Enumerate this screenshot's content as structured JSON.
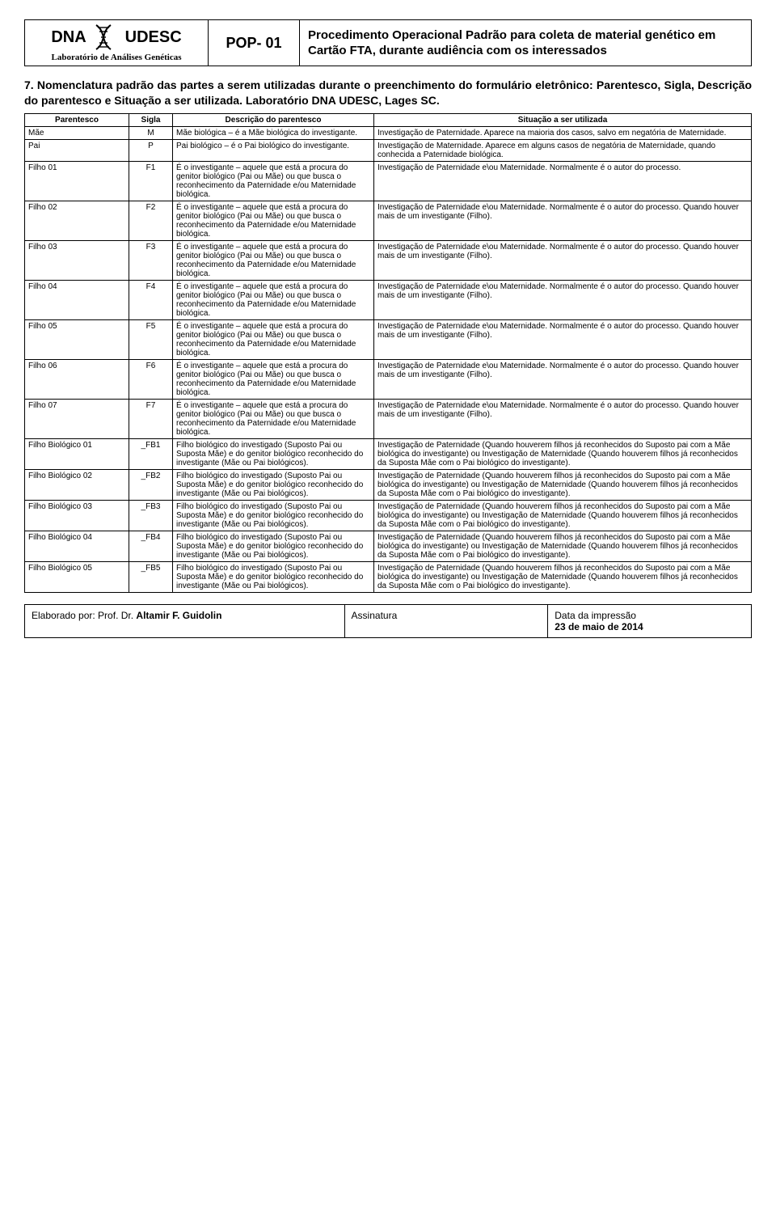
{
  "header": {
    "dna": "DNA",
    "udesc": "UDESC",
    "labSub": "Laboratório de Análises Genéticas",
    "pop": "POP- 01",
    "title": "Procedimento Operacional Padrão para coleta de material genético em Cartão FTA, durante audiência com os interessados"
  },
  "section": {
    "text": "7. Nomenclatura padrão das partes a serem utilizadas durante o preenchimento do formulário eletrônico: Parentesco, Sigla, Descrição do parentesco e Situação a ser utilizada. Laboratório DNA UDESC, Lages SC."
  },
  "tableHeader": {
    "parentesco": "Parentesco",
    "sigla": "Sigla",
    "desc": "Descrição do parentesco",
    "sit": "Situação a ser utilizada"
  },
  "rows": [
    {
      "p": "Mãe",
      "s": "M",
      "d": "Mãe biológica – é a Mãe biológica do investigante.",
      "sit": "Investigação de Paternidade. Aparece na maioria dos casos, salvo em negatória de Maternidade."
    },
    {
      "p": "Pai",
      "s": "P",
      "d": "Pai biológico – é o Pai biológico do investigante.",
      "sit": "Investigação de Maternidade. Aparece em alguns casos de negatória de Maternidade, quando conhecida a Paternidade biológica."
    },
    {
      "p": "Filho 01",
      "s": "F1",
      "d": "É o investigante – aquele que está a procura do genitor biológico (Pai ou Mãe) ou que busca o reconhecimento da Paternidade e/ou Maternidade biológica.",
      "sit": "Investigação de Paternidade e\\ou Maternidade. Normalmente é o autor do processo."
    },
    {
      "p": "Filho 02",
      "s": "F2",
      "d": "É o investigante – aquele que está a procura do genitor biológico (Pai ou Mãe) ou que busca o reconhecimento da Paternidade e/ou Maternidade biológica.",
      "sit": "Investigação de Paternidade e\\ou Maternidade. Normalmente é o autor do processo. Quando houver mais de um investigante (Filho)."
    },
    {
      "p": "Filho 03",
      "s": "F3",
      "d": "É o investigante – aquele que está a procura do genitor biológico (Pai ou Mãe) ou que busca o reconhecimento da Paternidade e/ou Maternidade biológica.",
      "sit": "Investigação de Paternidade e\\ou Maternidade. Normalmente é o autor do processo. Quando houver mais de um investigante (Filho)."
    },
    {
      "p": "Filho 04",
      "s": "F4",
      "d": "É o investigante – aquele que está a procura do genitor biológico (Pai ou Mãe) ou que busca o reconhecimento da Paternidade e/ou Maternidade biológica.",
      "sit": "Investigação de Paternidade e\\ou Maternidade. Normalmente é o autor do processo. Quando houver mais de um investigante (Filho)."
    },
    {
      "p": "Filho 05",
      "s": "F5",
      "d": "É o investigante – aquele que está a procura do genitor biológico (Pai ou Mãe) ou que busca o reconhecimento da Paternidade e/ou Maternidade biológica.",
      "sit": "Investigação de Paternidade e\\ou Maternidade. Normalmente é o autor do processo. Quando houver mais de um investigante (Filho)."
    },
    {
      "p": "Filho 06",
      "s": "F6",
      "d": "É o investigante – aquele que está a procura do genitor biológico (Pai ou Mãe) ou que busca o reconhecimento da Paternidade e/ou Maternidade biológica.",
      "sit": "Investigação de Paternidade e\\ou Maternidade. Normalmente é o autor do processo. Quando houver mais de um investigante (Filho)."
    },
    {
      "p": "Filho 07",
      "s": "F7",
      "d": "É o investigante – aquele que está a procura do genitor biológico (Pai ou Mãe) ou que busca o reconhecimento da Paternidade e/ou Maternidade biológica.",
      "sit": "Investigação de Paternidade e\\ou Maternidade. Normalmente é o autor do processo. Quando houver mais de um investigante (Filho)."
    },
    {
      "p": "Filho Biológico 01",
      "s": "_FB1",
      "d": "Filho biológico do investigado (Suposto Pai ou Suposta Mãe) e do genitor biológico reconhecido do investigante (Mãe ou Pai biológicos).",
      "sit": "Investigação de Paternidade (Quando houverem filhos já reconhecidos do Suposto pai com a Mãe biológica do investigante) ou Investigação de Maternidade (Quando houverem filhos já reconhecidos da Suposta Mãe com o Pai biológico do investigante)."
    },
    {
      "p": "Filho Biológico 02",
      "s": "_FB2",
      "d": "Filho biológico do investigado (Suposto Pai ou Suposta Mãe) e do genitor biológico reconhecido do investigante (Mãe ou Pai biológicos).",
      "sit": "Investigação de Paternidade (Quando houverem filhos já reconhecidos do Suposto pai com a Mãe biológica do investigante) ou Investigação de Maternidade (Quando houverem filhos já reconhecidos da Suposta Mãe com o Pai biológico do investigante)."
    },
    {
      "p": "Filho Biológico 03",
      "s": "_FB3",
      "d": "Filho biológico do investigado (Suposto Pai ou Suposta Mãe) e do genitor biológico reconhecido do investigante (Mãe ou Pai biológicos).",
      "sit": "Investigação de Paternidade (Quando houverem filhos já reconhecidos do Suposto pai com a Mãe biológica do investigante) ou Investigação de Maternidade (Quando houverem filhos já reconhecidos da Suposta Mãe com o Pai biológico do investigante)."
    },
    {
      "p": "Filho Biológico 04",
      "s": "_FB4",
      "d": "Filho biológico do investigado (Suposto Pai ou Suposta Mãe) e do genitor biológico reconhecido do investigante (Mãe ou Pai biológicos).",
      "sit": "Investigação de Paternidade (Quando houverem filhos já reconhecidos do Suposto pai com a Mãe biológica do investigante) ou Investigação de Maternidade (Quando houverem filhos já reconhecidos da Suposta Mãe com o Pai biológico do investigante)."
    },
    {
      "p": "Filho Biológico 05",
      "s": "_FB5",
      "d": "Filho biológico do investigado (Suposto Pai ou Suposta Mãe) e do genitor biológico reconhecido do investigante (Mãe ou Pai biológicos).",
      "sit": "Investigação de Paternidade (Quando houverem filhos já reconhecidos do Suposto pai com a Mãe biológica do investigante) ou Investigação de Maternidade (Quando houverem filhos já reconhecidos da Suposta Mãe com o Pai biológico do investigante)."
    }
  ],
  "footer": {
    "elabLabel": "Elaborado por: Prof. Dr. ",
    "elabName": "Altamir F. Guidolin",
    "assinatura": "Assinatura",
    "dataLabel": "Data da impressão",
    "dataValue": "23 de maio de 2014"
  }
}
